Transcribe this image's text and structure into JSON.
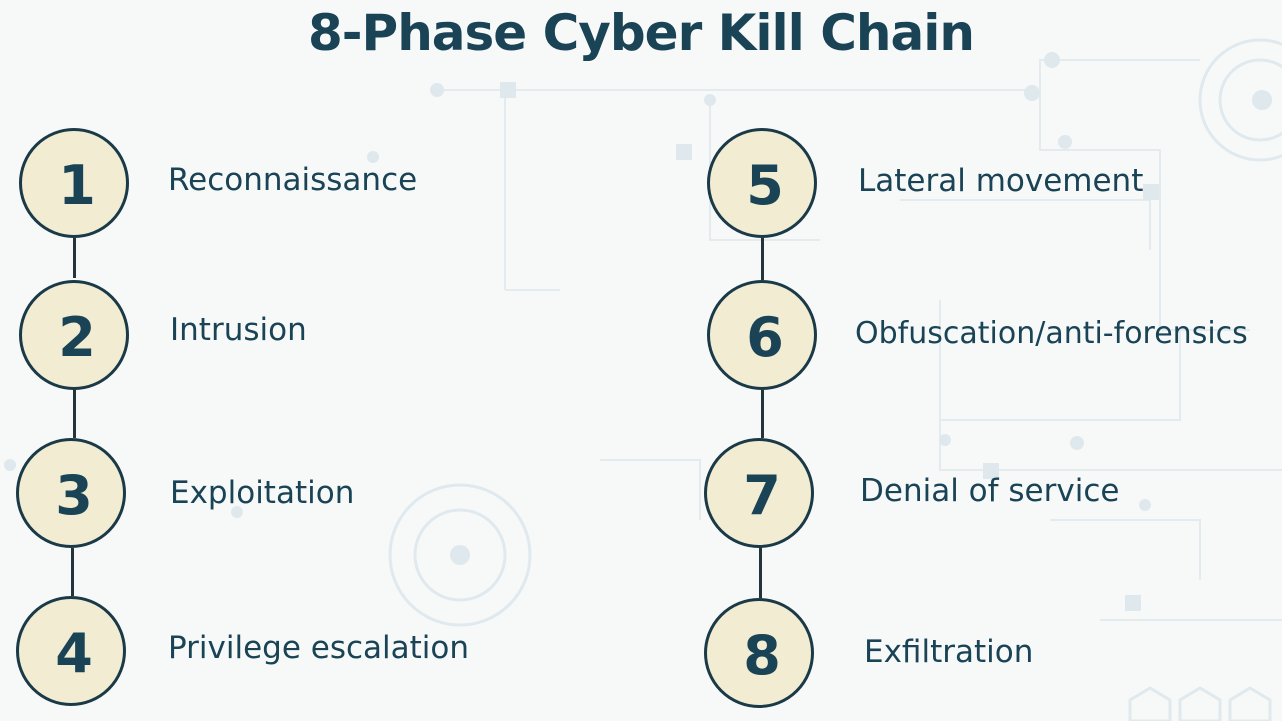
{
  "title": "8-Phase Cyber Kill Chain",
  "phases": [
    {
      "number": "1",
      "label": "Reconnaissance"
    },
    {
      "number": "2",
      "label": "Intrusion"
    },
    {
      "number": "3",
      "label": "Exploitation"
    },
    {
      "number": "4",
      "label": "Privilege escalation"
    },
    {
      "number": "5",
      "label": "Lateral movement"
    },
    {
      "number": "6",
      "label": "Obfuscation/anti-forensics"
    },
    {
      "number": "7",
      "label": "Denial of service"
    },
    {
      "number": "8",
      "label": "Exfiltration"
    }
  ],
  "colors": {
    "title": "#1a4456",
    "circle_fill": "#f1ecd2",
    "circle_border": "#1b3a48",
    "connector": "#24343b",
    "background": "#f7f9f9"
  }
}
